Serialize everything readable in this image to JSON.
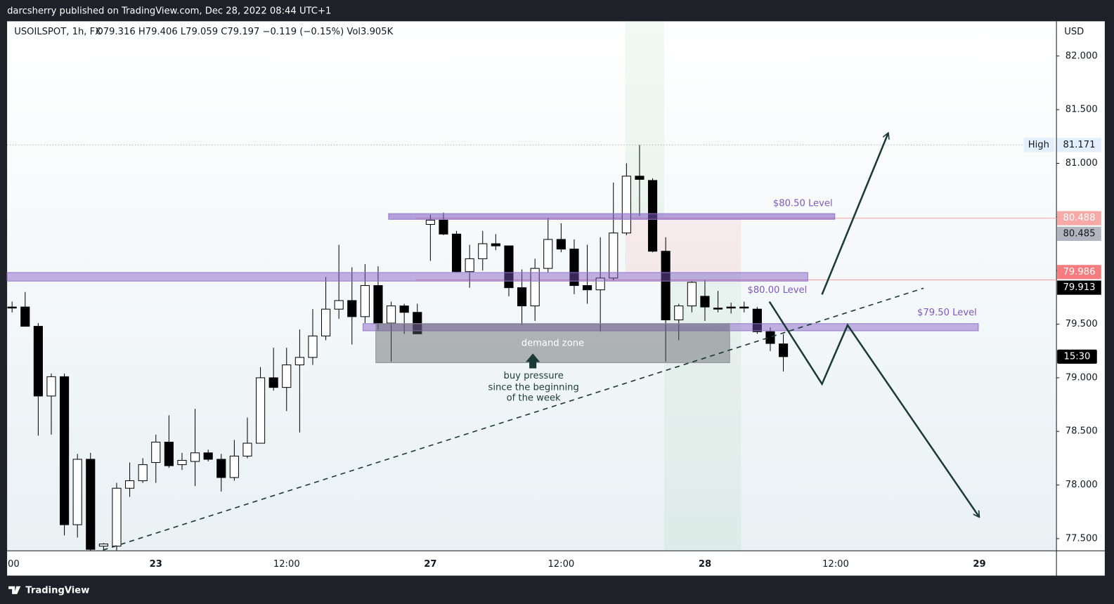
{
  "header": {
    "publisher": "darcsherry published on TradingView.com, Dec 28, 2022 08:44 UTC+1"
  },
  "footer": {
    "brand": "TradingView"
  },
  "chart_data": {
    "type": "candlestick",
    "title": "USOILSPOT, 1h, FX",
    "legend_text": "O79.316  H79.406  L79.059  C79.197  −0.119 (−0.15%)  Vol3.905K",
    "y_axis_label": "USD",
    "up_color": "#ffffff",
    "down_color": "#000000",
    "categories": [
      ":00",
      null,
      null,
      null,
      null,
      null,
      null,
      null,
      null,
      null,
      null,
      "23",
      null,
      null,
      null,
      null,
      null,
      null,
      null,
      null,
      null,
      "12:00",
      null,
      null,
      null,
      null,
      null,
      null,
      null,
      null,
      null,
      null,
      "27",
      null,
      null,
      null,
      null,
      null,
      null,
      null,
      null,
      null,
      "12:00",
      null,
      null,
      null,
      null,
      null,
      null,
      null,
      null,
      null,
      null,
      "28",
      null,
      null,
      null,
      null,
      null,
      null,
      null,
      null,
      null,
      "12:00",
      null,
      null,
      null,
      null,
      null,
      null,
      null,
      null,
      null,
      null,
      "29"
    ],
    "open": [
      79.66,
      79.66,
      79.48,
      78.83,
      79.01,
      77.63,
      78.24,
      77.43,
      77.43,
      77.97,
      78.04,
      78.21,
      78.4,
      78.19,
      78.22,
      78.3,
      78.24,
      78.07,
      78.27,
      78.39,
      79.0,
      78.91,
      79.12,
      79.19,
      79.39,
      79.64,
      79.72,
      79.57,
      79.86,
      79.51,
      79.67,
      79.61,
      80.43,
      80.47,
      80.34,
      79.99,
      80.11,
      80.25,
      80.23,
      79.84,
      79.67,
      80.02,
      80.29,
      80.2,
      79.86,
      79.82,
      79.93,
      80.35,
      80.88,
      80.84,
      80.18,
      79.54,
      79.67,
      79.76,
      79.65,
      79.66,
      79.66,
      79.64,
      79.43,
      79.316,
      null,
      null,
      null,
      null,
      null,
      null,
      null,
      null,
      null,
      null,
      null,
      null,
      null,
      null,
      null
    ],
    "high": [
      79.71,
      79.8,
      79.51,
      79.04,
      79.04,
      78.29,
      78.3,
      77.46,
      78.02,
      78.21,
      78.25,
      78.47,
      78.65,
      78.3,
      78.71,
      78.33,
      78.29,
      78.42,
      78.63,
      79.1,
      79.28,
      79.28,
      79.45,
      79.64,
      79.94,
      80.24,
      80.03,
      80.06,
      80.04,
      79.71,
      79.69,
      79.69,
      80.52,
      80.54,
      80.37,
      80.24,
      80.37,
      80.34,
      80.23,
      80.01,
      80.11,
      80.49,
      80.44,
      80.29,
      80.24,
      80.31,
      80.82,
      81.0,
      81.171,
      80.86,
      80.31,
      79.69,
      79.9,
      79.91,
      79.81,
      79.7,
      79.71,
      79.66,
      79.47,
      79.406,
      null,
      null,
      null,
      null,
      null,
      null,
      null,
      null,
      null,
      null,
      null,
      null,
      null,
      null,
      null
    ],
    "low": [
      79.61,
      79.48,
      78.46,
      78.47,
      77.53,
      77.51,
      77.39,
      77.39,
      77.39,
      77.89,
      78.02,
      78.02,
      78.16,
      78.14,
      77.99,
      78.22,
      77.94,
      78.04,
      78.25,
      78.39,
      78.88,
      78.69,
      78.49,
      79.12,
      79.35,
      79.55,
      79.31,
      79.51,
      79.45,
      79.15,
      79.41,
      79.41,
      80.09,
      80.33,
      79.98,
      79.84,
      80.0,
      80.19,
      79.76,
      79.49,
      79.53,
      79.98,
      80.17,
      79.78,
      79.69,
      79.43,
      79.91,
      80.33,
      80.51,
      80.17,
      79.15,
      79.35,
      79.61,
      79.53,
      79.61,
      79.6,
      79.61,
      79.41,
      79.25,
      79.059,
      null,
      null,
      null,
      null,
      null,
      null,
      null,
      null,
      null,
      null,
      null,
      null,
      null,
      null,
      null
    ],
    "close": [
      79.65,
      79.48,
      78.83,
      79.01,
      77.63,
      78.24,
      77.4,
      77.45,
      77.97,
      78.04,
      78.19,
      78.4,
      78.18,
      78.23,
      78.3,
      78.24,
      78.07,
      78.27,
      78.39,
      79.0,
      78.91,
      79.12,
      79.19,
      79.39,
      79.64,
      79.72,
      79.57,
      79.86,
      79.51,
      79.67,
      79.61,
      79.41,
      80.47,
      80.34,
      79.99,
      80.11,
      80.25,
      80.23,
      79.84,
      79.67,
      80.02,
      80.29,
      80.2,
      79.86,
      79.82,
      79.93,
      80.35,
      80.88,
      80.85,
      80.18,
      79.54,
      79.67,
      79.89,
      79.66,
      79.64,
      79.65,
      79.65,
      79.43,
      79.32,
      79.197,
      null,
      null,
      null,
      null,
      null,
      null,
      null,
      null,
      null,
      null,
      null,
      null,
      null,
      null,
      null
    ],
    "ylim": [
      77.387,
      82.324
    ],
    "yticks": [
      {
        "value": 82,
        "label": "82.000"
      },
      {
        "value": 81.5,
        "label": "81.500"
      },
      {
        "value": 81,
        "label": "81.000"
      },
      {
        "value": 80.5,
        "label": "80.500"
      },
      {
        "value": 80,
        "label": "80.000"
      },
      {
        "value": 79.5,
        "label": "79.500"
      },
      {
        "value": 79,
        "label": "79.000"
      },
      {
        "value": 78.5,
        "label": "78.500"
      },
      {
        "value": 78,
        "label": "78.000"
      },
      {
        "value": 77.5,
        "label": "77.500"
      }
    ],
    "grid": false,
    "price_tags": [
      {
        "label": "High",
        "value": 81.171,
        "color": "#e3effd",
        "text_color": "#131722",
        "line": "dotted"
      },
      {
        "value": 80.488,
        "color": "#f7a9a7",
        "text_color": "#ffffff",
        "line": "solid"
      },
      {
        "value": 80.485,
        "color": "#b2b5be",
        "text_color": "#131722"
      },
      {
        "value": 79.986,
        "color": "#f77c80",
        "text_color": "#ffffff"
      },
      {
        "value": 79.913,
        "color": "#000000",
        "text_color": "#ffffff",
        "line": "solid"
      }
    ],
    "countdown": "15:30",
    "annotations": {
      "level_80_50": "$80.50 Level",
      "level_80_00": "$80.00 Level",
      "level_79_50": "$79.50 Level",
      "demand_zone": "demand zone",
      "buy_pressure": [
        "buy pressure",
        "since the beginning",
        "of the week"
      ]
    }
  }
}
